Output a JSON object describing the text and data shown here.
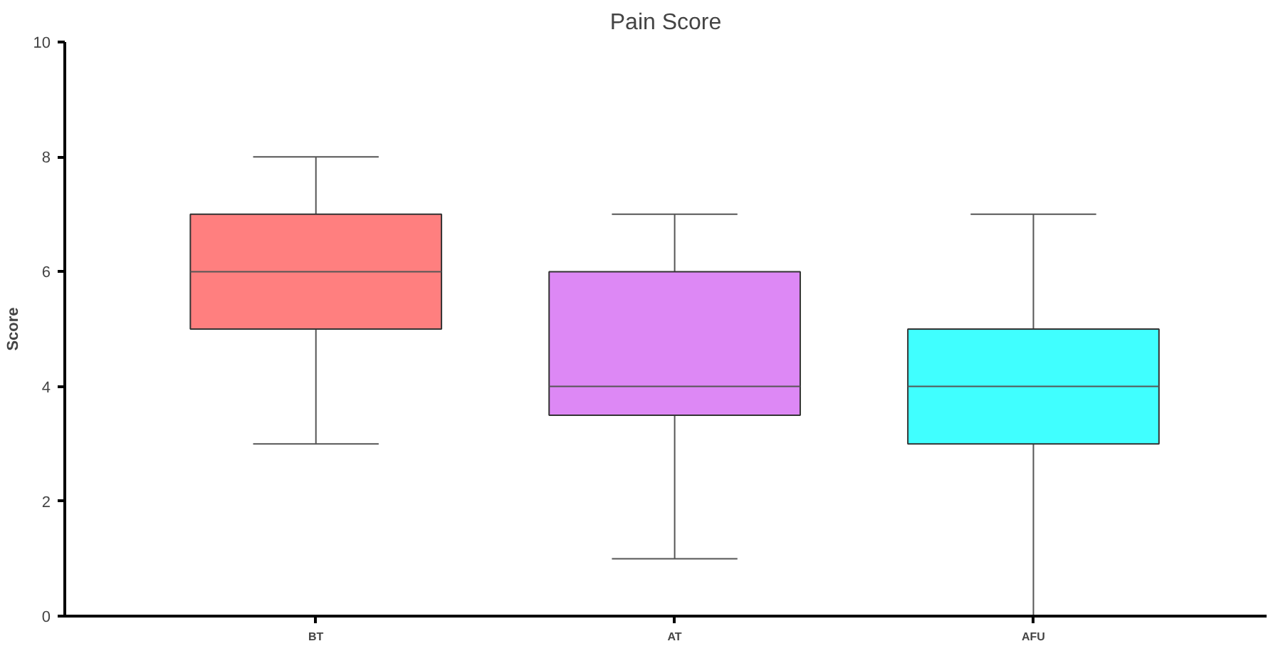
{
  "chart_data": {
    "type": "box",
    "title": "Pain Score",
    "ylabel": "Score",
    "categories": [
      "BT",
      "AT",
      "AFU"
    ],
    "boxes": [
      {
        "low": 3,
        "q1": 5,
        "median": 6,
        "q3": 7,
        "high": 8
      },
      {
        "low": 1,
        "q1": 3.5,
        "median": 4,
        "q3": 6,
        "high": 7
      },
      {
        "low": 0,
        "q1": 3,
        "median": 4,
        "q3": 5,
        "high": 7
      }
    ],
    "colors": [
      "#ff7f7f",
      "#dd88f5",
      "#40ffff"
    ],
    "ylim": [
      0,
      10
    ],
    "yticks": [
      0,
      2,
      4,
      6,
      8,
      10
    ],
    "grid": false
  }
}
